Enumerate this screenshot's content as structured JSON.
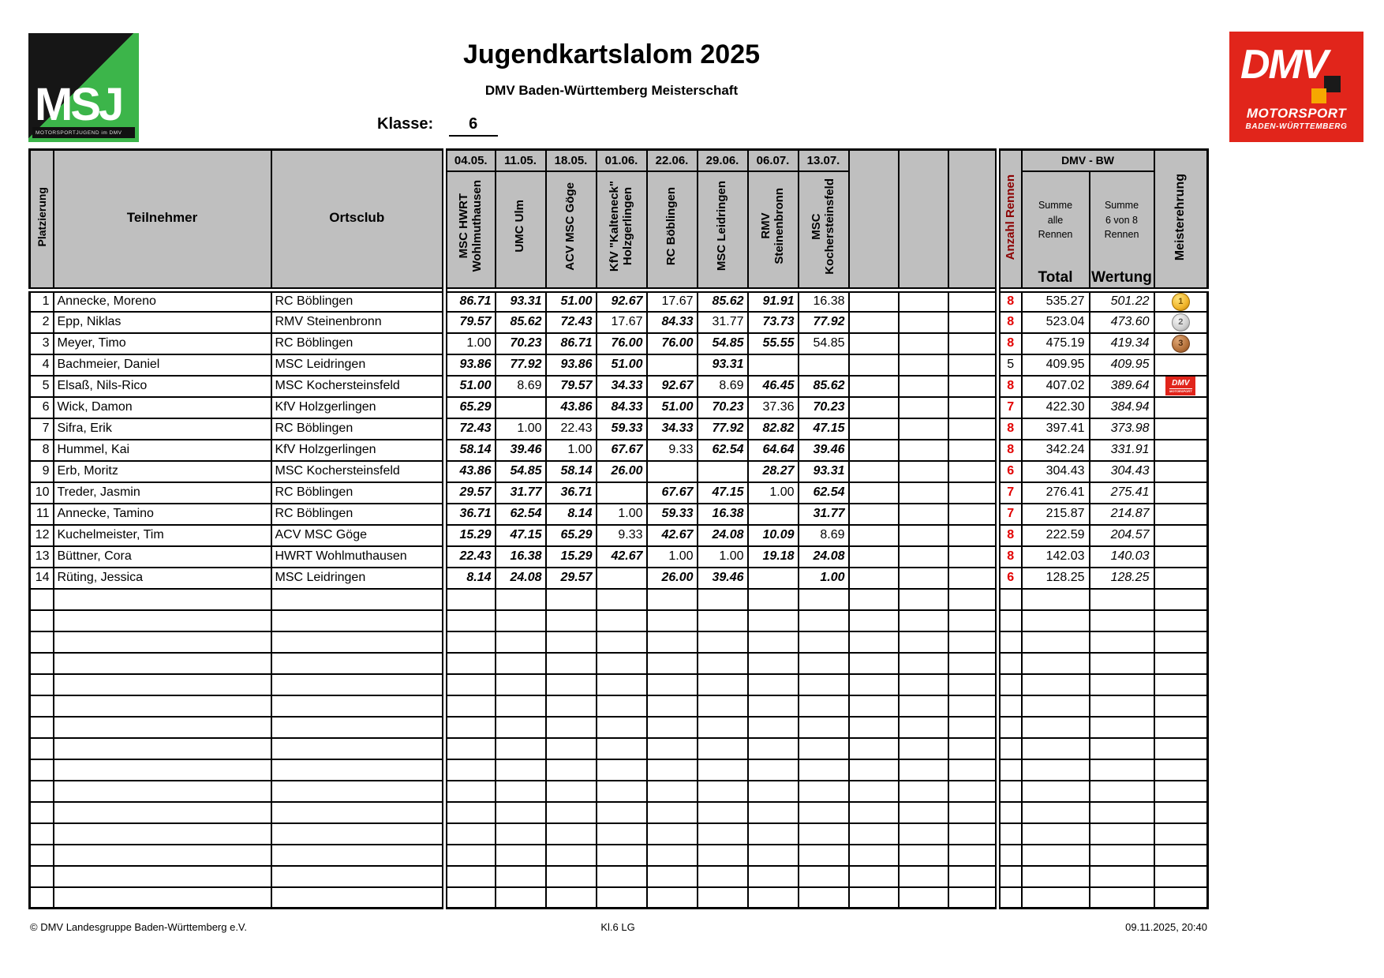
{
  "colors": {
    "accent_red": "#e30000",
    "header_gray": "#bfbfbf",
    "wertung_gray": "#d9d9d9",
    "dmv_red": "#e1251b",
    "msj_green": "#3cb54a"
  },
  "logos": {
    "msj": {
      "text": "MSJ",
      "subtext": "MOTORSPORTJUGEND im DMV"
    },
    "dmv": {
      "text": "DMV",
      "line1": "MOTORSPORT",
      "line2": "BADEN-WÜRTTEMBERG"
    }
  },
  "header": {
    "title": "Jugendkartslalom 2025",
    "subtitle": "DMV Baden-Württemberg Meisterschaft",
    "klasse_label": "Klasse:",
    "klasse_value": "6"
  },
  "table": {
    "col_platzierung": "Platzierung",
    "col_teilnehmer": "Teilnehmer",
    "col_ortsclub": "Ortsclub",
    "col_anzahl": "Anzahl Rennen",
    "dmv_bw_label": "DMV - BW",
    "sum_total_lines": "Summe\nalle\nRennen",
    "sum_wertung_lines": "Summe\n6 von 8\nRennen",
    "col_total": "Total",
    "col_wertung": "Wertung",
    "col_meisterehrung": "Meisterehrung",
    "races": [
      {
        "date": "04.05.",
        "club": "MSC HWRT\nWohlmuthausen"
      },
      {
        "date": "11.05.",
        "club": "UMC Ulm"
      },
      {
        "date": "18.05.",
        "club": "ACV MSC Göge"
      },
      {
        "date": "01.06.",
        "club": "KfV \"Kalteneck\"\nHolzgerlingen"
      },
      {
        "date": "22.06.",
        "club": "RC Böblingen"
      },
      {
        "date": "29.06.",
        "club": "MSC Leidringen"
      },
      {
        "date": "06.07.",
        "club": "RMV\nSteinenbronn"
      },
      {
        "date": "13.07.",
        "club": "MSC\nKochersteinsfeld"
      }
    ],
    "empty_race_columns": 3,
    "empty_rows": 15,
    "awards": {
      "gold": "1",
      "silver": "2",
      "bronze": "3",
      "dmv_badge": {
        "label": "DMV",
        "sub": "MOTORSPORT"
      }
    },
    "rows": [
      {
        "pos": "1",
        "name": "Annecke, Moreno",
        "club": "RC Böblingen",
        "scores": [
          [
            "86.71",
            1
          ],
          [
            "93.31",
            1
          ],
          [
            "51.00",
            1
          ],
          [
            "92.67",
            1
          ],
          [
            "17.67",
            0
          ],
          [
            "85.62",
            1
          ],
          [
            "91.91",
            1
          ],
          [
            "16.38",
            0
          ]
        ],
        "anzahl": "8",
        "anzahl_strong": true,
        "total": "535.27",
        "wertung": "501.22",
        "award": "gold"
      },
      {
        "pos": "2",
        "name": "Epp, Niklas",
        "club": "RMV Steinenbronn",
        "scores": [
          [
            "79.57",
            1
          ],
          [
            "85.62",
            1
          ],
          [
            "72.43",
            1
          ],
          [
            "17.67",
            0
          ],
          [
            "84.33",
            1
          ],
          [
            "31.77",
            0
          ],
          [
            "73.73",
            1
          ],
          [
            "77.92",
            1
          ]
        ],
        "anzahl": "8",
        "anzahl_strong": true,
        "total": "523.04",
        "wertung": "473.60",
        "award": "silver"
      },
      {
        "pos": "3",
        "name": "Meyer, Timo",
        "club": "RC Böblingen",
        "scores": [
          [
            "1.00",
            0
          ],
          [
            "70.23",
            1
          ],
          [
            "86.71",
            1
          ],
          [
            "76.00",
            1
          ],
          [
            "76.00",
            1
          ],
          [
            "54.85",
            1
          ],
          [
            "55.55",
            1
          ],
          [
            "54.85",
            0
          ]
        ],
        "anzahl": "8",
        "anzahl_strong": true,
        "total": "475.19",
        "wertung": "419.34",
        "award": "bronze"
      },
      {
        "pos": "4",
        "name": "Bachmeier, Daniel",
        "club": "MSC Leidringen",
        "scores": [
          [
            "93.86",
            1
          ],
          [
            "77.92",
            1
          ],
          [
            "93.86",
            1
          ],
          [
            "51.00",
            1
          ],
          null,
          [
            "93.31",
            1
          ],
          null,
          null
        ],
        "anzahl": "5",
        "anzahl_strong": false,
        "total": "409.95",
        "wertung": "409.95",
        "award": null
      },
      {
        "pos": "5",
        "name": "Elsaß, Nils-Rico",
        "club": "MSC Kochersteinsfeld",
        "scores": [
          [
            "51.00",
            1
          ],
          [
            "8.69",
            0
          ],
          [
            "79.57",
            1
          ],
          [
            "34.33",
            1
          ],
          [
            "92.67",
            1
          ],
          [
            "8.69",
            0
          ],
          [
            "46.45",
            1
          ],
          [
            "85.62",
            1
          ]
        ],
        "anzahl": "8",
        "anzahl_strong": true,
        "total": "407.02",
        "wertung": "389.64",
        "award": "dmv"
      },
      {
        "pos": "6",
        "name": "Wick, Damon",
        "club": "KfV Holzgerlingen",
        "scores": [
          [
            "65.29",
            1
          ],
          null,
          [
            "43.86",
            1
          ],
          [
            "84.33",
            1
          ],
          [
            "51.00",
            1
          ],
          [
            "70.23",
            1
          ],
          [
            "37.36",
            0
          ],
          [
            "70.23",
            1
          ]
        ],
        "anzahl": "7",
        "anzahl_strong": true,
        "total": "422.30",
        "wertung": "384.94",
        "award": null
      },
      {
        "pos": "7",
        "name": "Sifra, Erik",
        "club": "RC Böblingen",
        "scores": [
          [
            "72.43",
            1
          ],
          [
            "1.00",
            0
          ],
          [
            "22.43",
            0
          ],
          [
            "59.33",
            1
          ],
          [
            "34.33",
            1
          ],
          [
            "77.92",
            1
          ],
          [
            "82.82",
            1
          ],
          [
            "47.15",
            1
          ]
        ],
        "anzahl": "8",
        "anzahl_strong": true,
        "total": "397.41",
        "wertung": "373.98",
        "award": null
      },
      {
        "pos": "8",
        "name": "Hummel, Kai",
        "club": "KfV Holzgerlingen",
        "scores": [
          [
            "58.14",
            1
          ],
          [
            "39.46",
            1
          ],
          [
            "1.00",
            0
          ],
          [
            "67.67",
            1
          ],
          [
            "9.33",
            0
          ],
          [
            "62.54",
            1
          ],
          [
            "64.64",
            1
          ],
          [
            "39.46",
            1
          ]
        ],
        "anzahl": "8",
        "anzahl_strong": true,
        "total": "342.24",
        "wertung": "331.91",
        "award": null
      },
      {
        "pos": "9",
        "name": "Erb, Moritz",
        "club": "MSC Kochersteinsfeld",
        "scores": [
          [
            "43.86",
            1
          ],
          [
            "54.85",
            1
          ],
          [
            "58.14",
            1
          ],
          [
            "26.00",
            1
          ],
          null,
          null,
          [
            "28.27",
            1
          ],
          [
            "93.31",
            1
          ]
        ],
        "anzahl": "6",
        "anzahl_strong": true,
        "total": "304.43",
        "wertung": "304.43",
        "award": null
      },
      {
        "pos": "10",
        "name": "Treder, Jasmin",
        "club": "RC Böblingen",
        "scores": [
          [
            "29.57",
            1
          ],
          [
            "31.77",
            1
          ],
          [
            "36.71",
            1
          ],
          null,
          [
            "67.67",
            1
          ],
          [
            "47.15",
            1
          ],
          [
            "1.00",
            0
          ],
          [
            "62.54",
            1
          ]
        ],
        "anzahl": "7",
        "anzahl_strong": true,
        "total": "276.41",
        "wertung": "275.41",
        "award": null
      },
      {
        "pos": "11",
        "name": "Annecke, Tamino",
        "club": "RC Böblingen",
        "scores": [
          [
            "36.71",
            1
          ],
          [
            "62.54",
            1
          ],
          [
            "8.14",
            1
          ],
          [
            "1.00",
            0
          ],
          [
            "59.33",
            1
          ],
          [
            "16.38",
            1
          ],
          null,
          [
            "31.77",
            1
          ]
        ],
        "anzahl": "7",
        "anzahl_strong": true,
        "total": "215.87",
        "wertung": "214.87",
        "award": null
      },
      {
        "pos": "12",
        "name": "Kuchelmeister, Tim",
        "club": "ACV MSC Göge",
        "scores": [
          [
            "15.29",
            1
          ],
          [
            "47.15",
            1
          ],
          [
            "65.29",
            1
          ],
          [
            "9.33",
            0
          ],
          [
            "42.67",
            1
          ],
          [
            "24.08",
            1
          ],
          [
            "10.09",
            1
          ],
          [
            "8.69",
            0
          ]
        ],
        "anzahl": "8",
        "anzahl_strong": true,
        "total": "222.59",
        "wertung": "204.57",
        "award": null
      },
      {
        "pos": "13",
        "name": "Büttner, Cora",
        "club": "HWRT Wohlmuthausen",
        "scores": [
          [
            "22.43",
            1
          ],
          [
            "16.38",
            1
          ],
          [
            "15.29",
            1
          ],
          [
            "42.67",
            1
          ],
          [
            "1.00",
            0
          ],
          [
            "1.00",
            0
          ],
          [
            "19.18",
            1
          ],
          [
            "24.08",
            1
          ]
        ],
        "anzahl": "8",
        "anzahl_strong": true,
        "total": "142.03",
        "wertung": "140.03",
        "award": null
      },
      {
        "pos": "14",
        "name": "Rüting, Jessica",
        "club": "MSC Leidringen",
        "scores": [
          [
            "8.14",
            1
          ],
          [
            "24.08",
            1
          ],
          [
            "29.57",
            1
          ],
          null,
          [
            "26.00",
            1
          ],
          [
            "39.46",
            1
          ],
          null,
          [
            "1.00",
            1
          ]
        ],
        "anzahl": "6",
        "anzahl_strong": true,
        "total": "128.25",
        "wertung": "128.25",
        "award": null
      }
    ]
  },
  "footer": {
    "left": "© DMV Landesgruppe Baden-Württemberg e.V.",
    "center": "Kl.6 LG",
    "right": "09.11.2025, 20:40"
  }
}
